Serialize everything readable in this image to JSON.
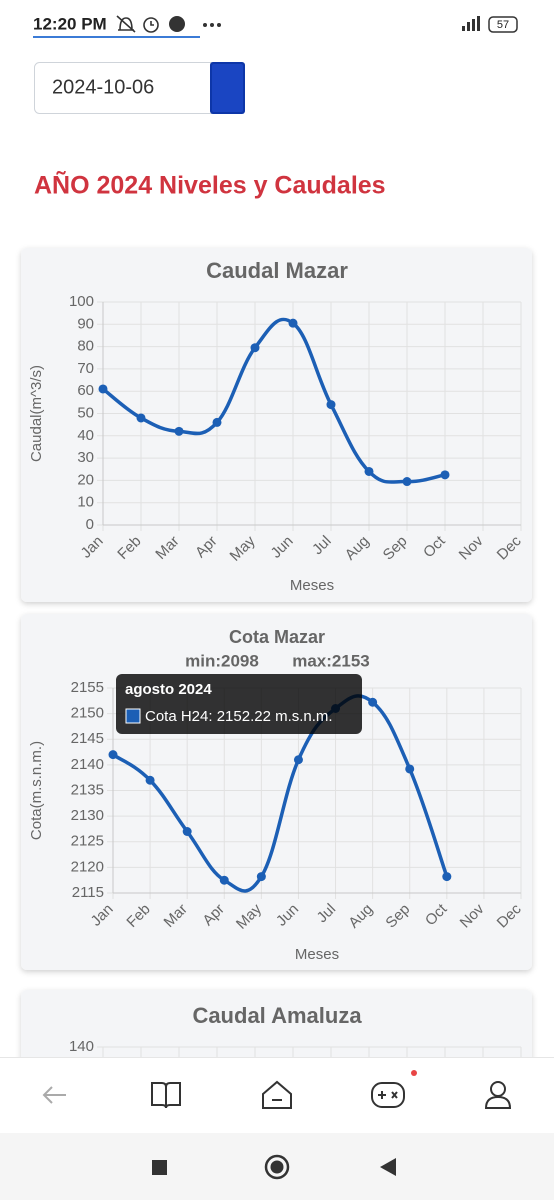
{
  "status_bar": {
    "time": "12:20 PM",
    "battery": "57"
  },
  "date_input": {
    "value": "2024-10-06"
  },
  "heading": "AÑO 2024 Niveles y Caudales",
  "chart_data": [
    {
      "type": "line",
      "title": "Caudal Mazar",
      "y_label": "Caudal(m^3/s)",
      "x_label": "Meses",
      "categories": [
        "Jan",
        "Feb",
        "Mar",
        "Apr",
        "May",
        "Jun",
        "Jul",
        "Aug",
        "Sep",
        "Oct",
        "Nov",
        "Dec"
      ],
      "series": [
        {
          "color": "#1c5fb5",
          "values": [
            61,
            48,
            42,
            46,
            79.5,
            90.5,
            54,
            24,
            19.5,
            22.5,
            null,
            null
          ]
        }
      ],
      "ylim": [
        0,
        100
      ],
      "yticks": [
        0,
        10,
        20,
        30,
        40,
        50,
        60,
        70,
        80,
        90,
        100
      ],
      "grid": true
    },
    {
      "type": "line",
      "title": "Cota Mazar",
      "subtitle": [
        "min:2098",
        "max:2153"
      ],
      "y_label": "Cota(m.s.n.m.)",
      "x_label": "Meses",
      "categories": [
        "Jan",
        "Feb",
        "Mar",
        "Apr",
        "May",
        "Jun",
        "Jul",
        "Aug",
        "Sep",
        "Oct",
        "Nov",
        "Dec"
      ],
      "series": [
        {
          "color": "#1c5fb5",
          "values": [
            2142,
            2137,
            2127,
            2117.5,
            2118.2,
            2141,
            2151,
            2152.22,
            2139.2,
            2118.2,
            null,
            null
          ]
        }
      ],
      "ylim": [
        2115,
        2155
      ],
      "yticks": [
        2115,
        2120,
        2125,
        2130,
        2135,
        2140,
        2145,
        2150,
        2155
      ],
      "grid": true,
      "tooltip": {
        "title": "agosto 2024",
        "text": "Cota H24: 2152.22 m.s.n.m."
      }
    },
    {
      "type": "line",
      "title": "Caudal Amaluza",
      "yticks": [
        140
      ],
      "grid": true
    }
  ]
}
